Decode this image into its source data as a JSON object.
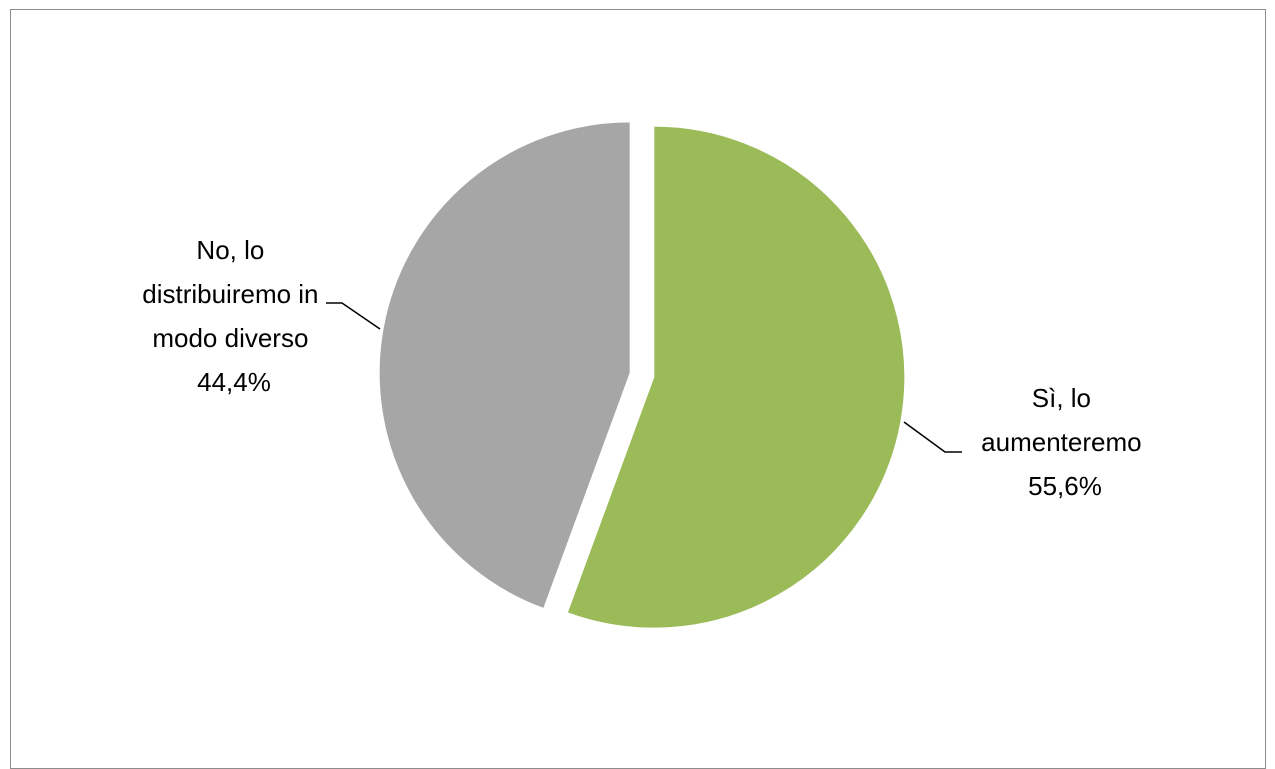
{
  "chart_data": {
    "type": "pie",
    "title": "",
    "slices": [
      {
        "label_lines": [
          "Sì, lo",
          "aumenteremo"
        ],
        "value": 55.6,
        "value_label": "55,6%",
        "color": "#9bbb59",
        "exploded": true
      },
      {
        "label_lines": [
          "No, lo",
          "distribuiremo in",
          "modo diverso"
        ],
        "value": 44.4,
        "value_label": "44,4%",
        "color": "#a6a6a6",
        "exploded": true
      }
    ],
    "start_angle": "12 o'clock",
    "direction": "clockwise",
    "legend": "none",
    "data_labels": "outside with leader lines"
  }
}
